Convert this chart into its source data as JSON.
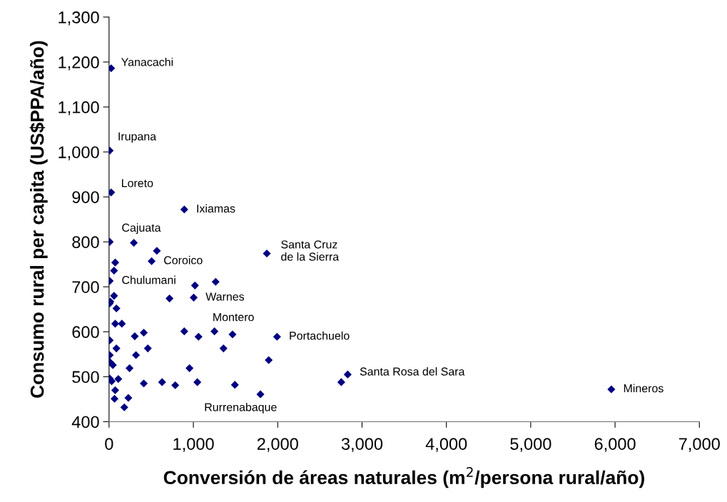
{
  "chart_data": {
    "type": "scatter",
    "xlabel": "Conversión de áreas naturales (m$^{2}$/persona rural/año)",
    "ylabel": "Consumo rural per capita (US$PPA/año)",
    "marker": "diamond",
    "grid": false,
    "xlim": [
      0,
      7000
    ],
    "ylim": [
      400,
      1300
    ],
    "xticks": [
      0,
      {
        "value": 1000,
        "label": "1,000"
      },
      {
        "value": 2000,
        "label": "2,000"
      },
      {
        "value": 3000,
        "label": "3,000"
      },
      {
        "value": 4000,
        "label": "4,000"
      },
      {
        "value": 5000,
        "label": "5,000"
      },
      {
        "value": 6000,
        "label": "6,000"
      },
      {
        "value": 7000,
        "label": "7,000"
      }
    ],
    "yticks": [
      400,
      500,
      600,
      700,
      800,
      900,
      {
        "value": 1000,
        "label": "1,000"
      },
      {
        "value": 1100,
        "label": "1,100"
      },
      {
        "value": 1200,
        "label": "1,200"
      },
      {
        "value": 1300,
        "label": "1,300"
      }
    ],
    "series": [
      {
        "color": "#000080",
        "x": [
          25,
          8,
          25,
          892,
          8,
          294,
          567,
          505,
          73,
          59,
          8,
          1019,
          1264,
          1004,
          717,
          59,
          15,
          8,
          87,
          73,
          152,
          8,
          305,
          412,
          892,
          1061,
          1250,
          1464,
          1992,
          87,
          460,
          1357,
          8,
          319,
          8,
          45,
          243,
          954,
          1893,
          8,
          31,
          110,
          412,
          629,
          785,
          1047,
          1492,
          73,
          65,
          229,
          181,
          1795,
          1871,
          2754,
          2830,
          5956
        ],
        "values": [
          1186,
          1003,
          910,
          872,
          800,
          798,
          780,
          757,
          754,
          736,
          713,
          703,
          711,
          676,
          674,
          680,
          667,
          663,
          652,
          618,
          618,
          581,
          590,
          598,
          601,
          589,
          601,
          594,
          589,
          563,
          563,
          563,
          548,
          548,
          533,
          526,
          519,
          519,
          537,
          496,
          490,
          495,
          485,
          488,
          481,
          488,
          482,
          470,
          451,
          453,
          432,
          461,
          774,
          488,
          505,
          472
        ]
      }
    ],
    "annotations": [
      {
        "text": "Yanacachi",
        "x": 25,
        "y": 1186
      },
      {
        "text": "Irupana",
        "x": 8,
        "y": 1003
      },
      {
        "text": "Loreto",
        "x": 25,
        "y": 910
      },
      {
        "text": "Ixiamas",
        "x": 892,
        "y": 872
      },
      {
        "text": "Cajuata",
        "x": 8,
        "y": 800
      },
      {
        "text": "Coroico",
        "x": 505,
        "y": 757
      },
      {
        "text": "Chulumani",
        "x": 8,
        "y": 713
      },
      {
        "text": "Warnes",
        "x": 1004,
        "y": 676
      },
      {
        "text": "Montero",
        "x": 1250,
        "y": 601
      },
      {
        "text": "Santa Cruz\nde la Sierra",
        "x": 1871,
        "y": 774
      },
      {
        "text": "Portachuelo",
        "x": 1992,
        "y": 589
      },
      {
        "text": "Santa Rosa del Sara",
        "x": 2830,
        "y": 505
      },
      {
        "text": "Rurrenabaque",
        "x": 1795,
        "y": 461
      },
      {
        "text": "Mineros",
        "x": 5956,
        "y": 472
      }
    ]
  }
}
